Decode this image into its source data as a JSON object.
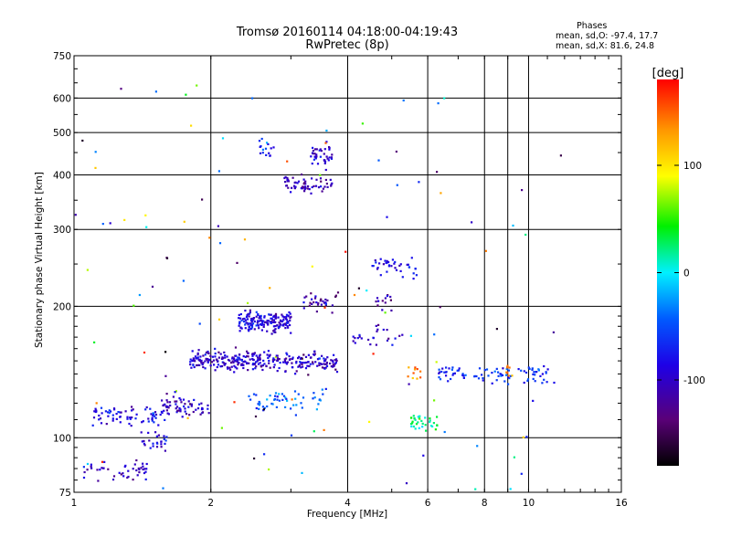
{
  "header": {
    "title": "Tromsø 20160114 04:18:00-04:19:43",
    "subtitle": "RwPretec (8p)"
  },
  "stats": {
    "heading": "Phases",
    "line1": "mean, sd,O: -97.4, 17.7",
    "line2": "mean, sd,X: 81.6, 24.8"
  },
  "colorbar": {
    "title": "[deg]",
    "range": [
      -180,
      180
    ],
    "ticks": [
      "100",
      "0",
      "-100"
    ]
  },
  "chart_data": {
    "type": "scatter",
    "title": "Tromsø 20160114 04:18:00-04:19:43",
    "subtitle": "RwPretec (8p)",
    "xlabel": "Frequency [MHz]",
    "ylabel": "Stationary phase Virtual Height [km]",
    "xscale": "log",
    "yscale": "log",
    "xlim": [
      1,
      16
    ],
    "ylim": [
      75,
      750
    ],
    "xticks": [
      "1",
      "2",
      "4",
      "6",
      "8",
      "10",
      "16"
    ],
    "yticks": [
      "75",
      "100",
      "200",
      "300",
      "400",
      "500",
      "600",
      "750"
    ],
    "x_gridlines": [
      2,
      4,
      6,
      8,
      9,
      10
    ],
    "y_gridlines": [
      100,
      200,
      300,
      400,
      500,
      600
    ],
    "color_variable": "phase [deg]",
    "series": [
      {
        "x": 1.05,
        "x_end": 1.45,
        "y": 84,
        "count": 45,
        "phase": -100
      },
      {
        "x": 1.4,
        "x_end": 1.6,
        "y": 98,
        "count": 25,
        "phase": -95
      },
      {
        "x": 1.1,
        "x_end": 1.6,
        "y": 113,
        "count": 70,
        "phase": -85
      },
      {
        "x": 1.55,
        "x_end": 2.0,
        "y": 118,
        "count": 60,
        "phase": -105
      },
      {
        "x": 1.8,
        "x_end": 2.6,
        "y": 150,
        "count": 180,
        "phase": -100
      },
      {
        "x": 2.3,
        "x_end": 3.0,
        "y": 185,
        "count": 170,
        "phase": -90
      },
      {
        "x": 2.6,
        "x_end": 3.8,
        "y": 150,
        "count": 130,
        "phase": -100
      },
      {
        "x": 2.4,
        "x_end": 3.6,
        "y": 122,
        "count": 55,
        "phase": -45
      },
      {
        "x": 3.2,
        "x_end": 3.8,
        "y": 205,
        "count": 30,
        "phase": -110
      },
      {
        "x": 2.9,
        "x_end": 3.7,
        "y": 380,
        "count": 60,
        "phase": -110
      },
      {
        "x": 3.3,
        "x_end": 3.7,
        "y": 440,
        "count": 40,
        "phase": -100
      },
      {
        "x": 2.55,
        "x_end": 2.75,
        "y": 460,
        "count": 15,
        "phase": -60
      },
      {
        "x": 4.5,
        "x_end": 5.2,
        "y": 248,
        "count": 25,
        "phase": -90
      },
      {
        "x": 5.2,
        "x_end": 5.7,
        "y": 240,
        "count": 12,
        "phase": -70
      },
      {
        "x": 4.1,
        "x_end": 5.3,
        "y": 172,
        "count": 25,
        "phase": -100
      },
      {
        "x": 4.6,
        "x_end": 5.0,
        "y": 205,
        "count": 12,
        "phase": -110
      },
      {
        "x": 5.5,
        "x_end": 6.3,
        "y": 108,
        "count": 35,
        "phase": 20
      },
      {
        "x": 6.3,
        "x_end": 11.5,
        "y": 140,
        "count": 90,
        "phase": -65
      },
      {
        "x": 5.4,
        "x_end": 5.8,
        "y": 140,
        "count": 10,
        "phase": 140
      },
      {
        "x": 8.8,
        "x_end": 9.2,
        "y": 140,
        "count": 8,
        "phase": 140
      },
      {
        "x": 1.0,
        "x_end": 12.0,
        "y": 75,
        "y_end": 650,
        "count": 120,
        "phase": 0
      }
    ]
  }
}
